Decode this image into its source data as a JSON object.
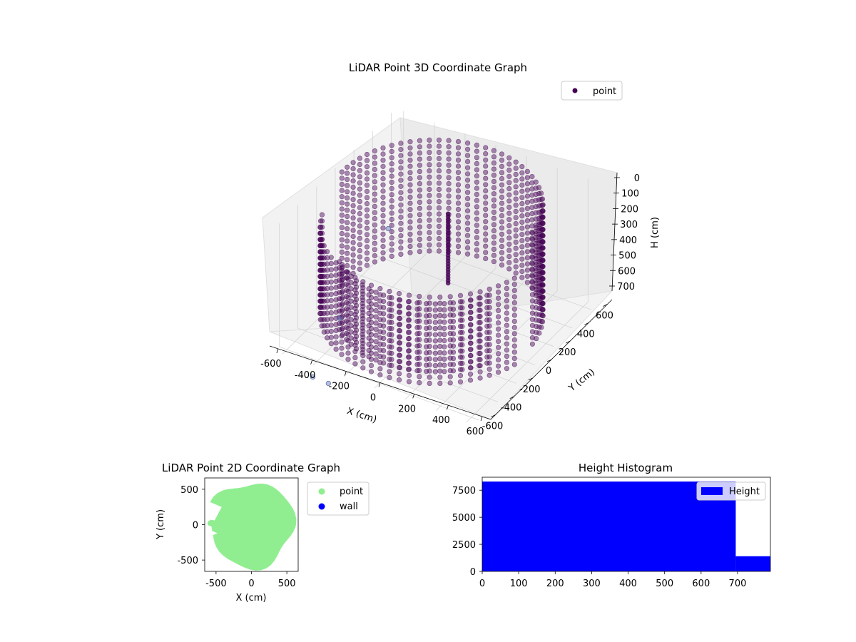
{
  "chart_data": [
    {
      "type": "scatter",
      "projection": "3d",
      "title": "LiDAR Point 3D Coordinate Graph",
      "xlabel": "X (cm)",
      "ylabel": "Y (cm)",
      "zlabel": "H (cm)",
      "xticks": [
        -600,
        -400,
        -200,
        0,
        200,
        400,
        600
      ],
      "yticks": [
        -600,
        -400,
        -200,
        0,
        200,
        400,
        600
      ],
      "zticks": [
        0,
        100,
        200,
        300,
        400,
        500,
        600,
        700
      ],
      "xlim": [
        -650,
        650
      ],
      "ylim": [
        -650,
        650
      ],
      "zlim": [
        0,
        800
      ],
      "z_inverted": true,
      "colormap": "viridis",
      "point_color": "#440154",
      "legend": [
        {
          "name": "point",
          "color": "#440154"
        }
      ],
      "legend_position": "upper right",
      "description_of_data": "dense cylindrical shell of points around the origin, radius ~550-650 cm, heights 0-700 cm, plus a few scattered outliers"
    },
    {
      "type": "scatter",
      "title": "LiDAR Point 2D Coordinate Graph",
      "xlabel": "X (cm)",
      "ylabel": "Y (cm)",
      "xticks": [
        -500,
        0,
        500
      ],
      "yticks": [
        -500,
        0,
        500
      ],
      "xlim": [
        -660,
        660
      ],
      "ylim": [
        -660,
        660
      ],
      "series": [
        {
          "name": "point",
          "color": "#90ee90"
        },
        {
          "name": "wall",
          "color": "#0000ff"
        }
      ],
      "legend_position": "outside right"
    },
    {
      "type": "bar",
      "subtype": "histogram",
      "title": "Height Histogram",
      "xticks": [
        0,
        100,
        200,
        300,
        400,
        500,
        600,
        700
      ],
      "yticks": [
        0,
        2500,
        5000,
        7500
      ],
      "xlim": [
        0,
        790
      ],
      "ylim": [
        0,
        8700
      ],
      "bins": [
        {
          "from": 0,
          "to": 695,
          "count": 8300
        },
        {
          "from": 695,
          "to": 790,
          "count": 1400
        }
      ],
      "series": [
        {
          "name": "Height",
          "color": "#0000ff"
        }
      ],
      "legend_position": "upper right"
    }
  ]
}
